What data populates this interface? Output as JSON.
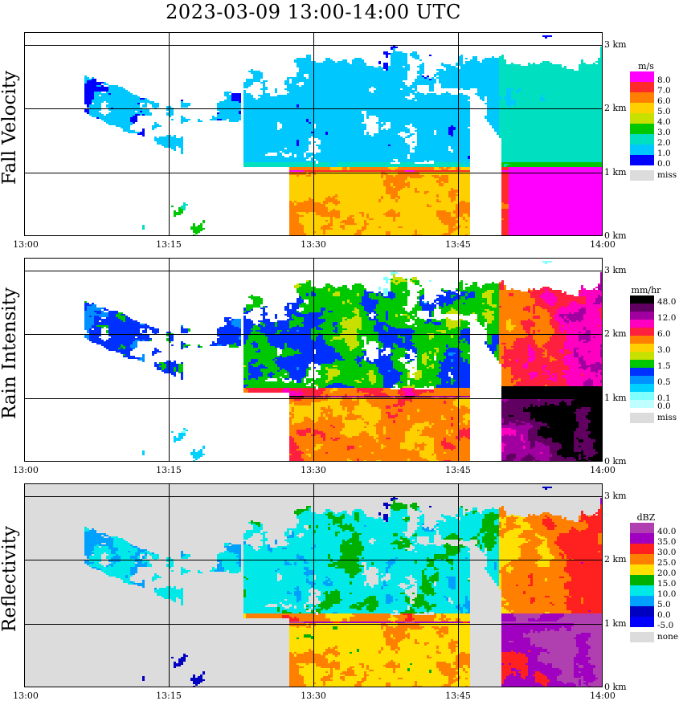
{
  "title": "2023-03-09  13:00-14:00 UTC",
  "chart_data": [
    {
      "type": "heatmap",
      "name": "fall-velocity",
      "ylabel": "Fall Velocity",
      "xlabel": "",
      "x_ticks": [
        "13:00",
        "13:15",
        "13:30",
        "13:45",
        "14:00"
      ],
      "y_ticks": [
        "0 km",
        "1 km",
        "2 km",
        "3 km"
      ],
      "xlim": [
        0,
        60
      ],
      "ylim": [
        0,
        3.2
      ],
      "grid": true,
      "legend": {
        "placement": "right",
        "unit": "m/s",
        "entries": [
          {
            "label": "8.0",
            "color": "#ff00ff"
          },
          {
            "label": "7.0",
            "color": "#ff2a2a"
          },
          {
            "label": "6.0",
            "color": "#ff8000"
          },
          {
            "label": "5.0",
            "color": "#ffd000"
          },
          {
            "label": "4.0",
            "color": "#c8e000"
          },
          {
            "label": "3.0",
            "color": "#00c800"
          },
          {
            "label": "2.0",
            "color": "#00e0c0"
          },
          {
            "label": "1.0",
            "color": "#00c8ff"
          },
          {
            "label": "0.0",
            "color": "#0000ff"
          }
        ],
        "missing_label": "miss"
      }
    },
    {
      "type": "heatmap",
      "name": "rain-intensity",
      "ylabel": "Rain Intensity",
      "xlabel": "",
      "x_ticks": [
        "13:00",
        "13:15",
        "13:30",
        "13:45",
        "14:00"
      ],
      "y_ticks": [
        "0 km",
        "1 km",
        "2 km",
        "3 km"
      ],
      "xlim": [
        0,
        60
      ],
      "ylim": [
        0,
        3.2
      ],
      "grid": true,
      "legend": {
        "placement": "right",
        "unit": "mm/hr",
        "entries": [
          {
            "label": "48.0",
            "color": "#000000"
          },
          {
            "label": "",
            "color": "#600060"
          },
          {
            "label": "12.0",
            "color": "#a000a0"
          },
          {
            "label": "",
            "color": "#ff00c0"
          },
          {
            "label": "6.0",
            "color": "#ff2040"
          },
          {
            "label": "",
            "color": "#ff8000"
          },
          {
            "label": "3.0",
            "color": "#ffd000"
          },
          {
            "label": "",
            "color": "#c8e000"
          },
          {
            "label": "1.5",
            "color": "#00c800"
          },
          {
            "label": "",
            "color": "#0030ff"
          },
          {
            "label": "0.5",
            "color": "#0090ff"
          },
          {
            "label": "",
            "color": "#00d0ff"
          },
          {
            "label": "0.1",
            "color": "#80ffff"
          },
          {
            "label": "0.0",
            "color": "#c0ffff"
          }
        ],
        "missing_label": "miss"
      }
    },
    {
      "type": "heatmap",
      "name": "reflectivity",
      "ylabel": "Reflectivity",
      "xlabel": "",
      "x_ticks": [
        "13:00",
        "13:15",
        "13:30",
        "13:45",
        "14:00"
      ],
      "y_ticks": [
        "0 km",
        "1 km",
        "2 km",
        "3 km"
      ],
      "xlim": [
        0,
        60
      ],
      "ylim": [
        0,
        3.2
      ],
      "grid": true,
      "legend": {
        "placement": "right",
        "unit": "dBZ",
        "entries": [
          {
            "label": "40.0",
            "color": "#b040b0"
          },
          {
            "label": "35.0",
            "color": "#a000c0"
          },
          {
            "label": "30.0",
            "color": "#ff2020"
          },
          {
            "label": "25.0",
            "color": "#ff8000"
          },
          {
            "label": "20.0",
            "color": "#ffe000"
          },
          {
            "label": "15.0",
            "color": "#00b000"
          },
          {
            "label": "10.0",
            "color": "#00e8e8"
          },
          {
            "label": "5.0",
            "color": "#00a0ff"
          },
          {
            "label": "0.0",
            "color": "#0000c0"
          },
          {
            "label": "-5.0",
            "color": "#0000ff"
          }
        ],
        "missing_label": "none"
      }
    }
  ]
}
